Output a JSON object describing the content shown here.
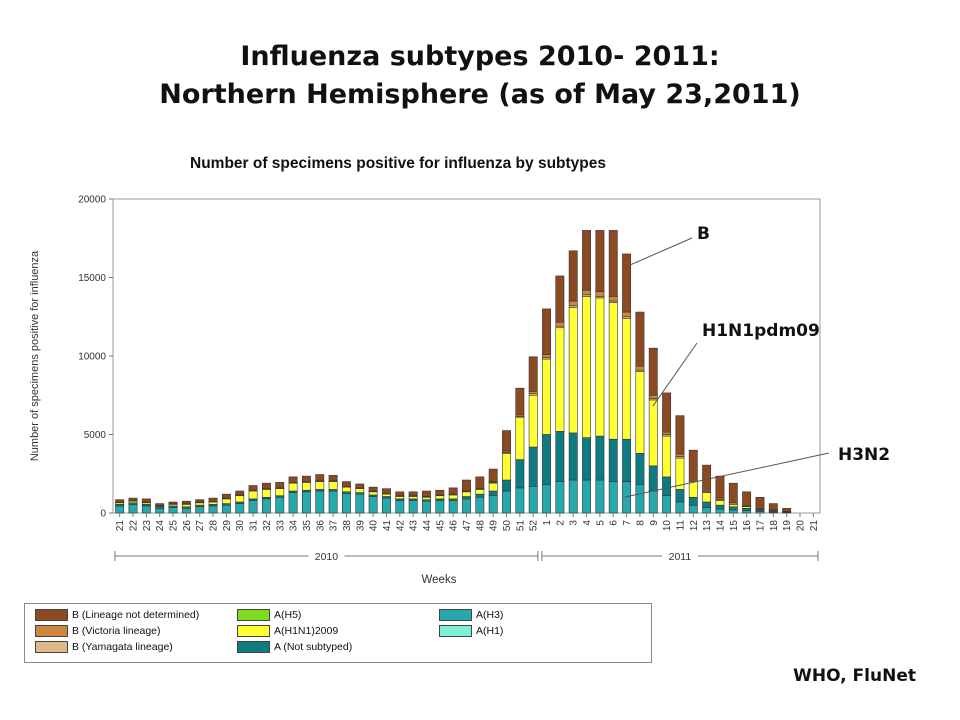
{
  "slide": {
    "title_line1": "Influenza subtypes 2010- 2011:",
    "title_line2": "Northern Hemisphere (as of May 23,2011)",
    "source": "WHO, FluNet"
  },
  "callouts": [
    {
      "key": "B",
      "text": "B"
    },
    {
      "key": "H1N1",
      "text": "H1N1pdm09"
    },
    {
      "key": "H3N2",
      "text": "H3N2"
    }
  ],
  "colors": {
    "B_undetermined": "#8b4a22",
    "B_victoria": "#cd853f",
    "B_yamagata": "#ddb98a",
    "A_H5": "#7ddc1f",
    "A_H1N1_2009": "#ffff33",
    "A_not_subtyped": "#0e7b80",
    "A_H3": "#27a8ad",
    "A_H1": "#7ff0d4"
  },
  "chart_data": {
    "type": "bar",
    "stacked": true,
    "title": "Number of specimens positive for influenza by subtypes",
    "xlabel": "Weeks",
    "ylabel": "Number of specimens positive for influenza",
    "ylim": [
      0,
      20000
    ],
    "yticks": [
      0,
      5000,
      10000,
      15000,
      20000
    ],
    "grid": false,
    "legend_position": "bottom",
    "categories": [
      "21",
      "22",
      "23",
      "24",
      "25",
      "26",
      "27",
      "28",
      "29",
      "30",
      "31",
      "32",
      "33",
      "34",
      "35",
      "36",
      "37",
      "38",
      "39",
      "40",
      "41",
      "42",
      "43",
      "44",
      "45",
      "46",
      "47",
      "48",
      "49",
      "50",
      "51",
      "52",
      "1",
      "2",
      "3",
      "4",
      "5",
      "6",
      "7",
      "8",
      "9",
      "10",
      "11",
      "12",
      "13",
      "14",
      "15",
      "16",
      "17",
      "18",
      "19",
      "20",
      "21"
    ],
    "year_groups": [
      {
        "label": "2010",
        "from": "21",
        "to": "52"
      },
      {
        "label": "2011",
        "from": "1",
        "to": "21"
      }
    ],
    "series": [
      {
        "name": "A(H3)",
        "color_key": "A_H3",
        "values": [
          450,
          550,
          450,
          300,
          350,
          300,
          400,
          450,
          500,
          600,
          800,
          900,
          1000,
          1300,
          1350,
          1400,
          1400,
          1250,
          1200,
          1050,
          950,
          800,
          800,
          750,
          800,
          800,
          900,
          1000,
          1100,
          1400,
          1600,
          1700,
          1800,
          2000,
          2100,
          2100,
          2100,
          2000,
          2000,
          1800,
          1400,
          1100,
          700,
          500,
          350,
          250,
          200,
          150,
          100,
          60,
          40,
          0,
          0
        ]
      },
      {
        "name": "A(Not subtyped)",
        "color_key": "A_not_subtyped",
        "values": [
          100,
          100,
          100,
          100,
          100,
          100,
          100,
          100,
          100,
          100,
          100,
          100,
          100,
          100,
          100,
          100,
          100,
          100,
          100,
          100,
          100,
          100,
          100,
          100,
          100,
          100,
          150,
          200,
          300,
          700,
          1800,
          2500,
          3200,
          3200,
          3000,
          2700,
          2800,
          2700,
          2700,
          2000,
          1600,
          1200,
          800,
          500,
          350,
          250,
          200,
          150,
          100,
          60,
          40,
          0,
          0
        ]
      },
      {
        "name": "A(H1N1)2009",
        "color_key": "A_H1N1_2009",
        "values": [
          100,
          100,
          100,
          50,
          100,
          150,
          150,
          150,
          300,
          400,
          500,
          500,
          450,
          500,
          500,
          500,
          500,
          300,
          250,
          200,
          150,
          150,
          150,
          150,
          200,
          250,
          300,
          300,
          500,
          1700,
          2700,
          3300,
          4800,
          6600,
          8000,
          9000,
          8800,
          8700,
          7700,
          5200,
          4200,
          2600,
          2000,
          1000,
          600,
          300,
          150,
          100,
          50,
          30,
          20,
          0,
          0
        ]
      },
      {
        "name": "A(H1)",
        "color_key": "A_H1",
        "values": [
          0,
          0,
          0,
          0,
          0,
          0,
          0,
          0,
          0,
          0,
          0,
          0,
          0,
          0,
          0,
          0,
          0,
          0,
          0,
          0,
          0,
          0,
          0,
          0,
          0,
          0,
          0,
          0,
          0,
          0,
          0,
          0,
          0,
          0,
          0,
          0,
          0,
          0,
          0,
          0,
          0,
          0,
          0,
          0,
          0,
          0,
          0,
          0,
          0,
          0,
          0,
          0,
          0
        ]
      },
      {
        "name": "A(H5)",
        "color_key": "A_H5",
        "values": [
          0,
          0,
          0,
          0,
          0,
          0,
          0,
          0,
          0,
          0,
          0,
          0,
          0,
          0,
          0,
          0,
          0,
          0,
          0,
          0,
          0,
          0,
          0,
          0,
          0,
          0,
          0,
          0,
          0,
          0,
          0,
          0,
          0,
          0,
          0,
          0,
          0,
          0,
          0,
          0,
          0,
          0,
          0,
          0,
          0,
          0,
          0,
          0,
          0,
          0,
          0,
          0,
          0
        ]
      },
      {
        "name": "B (Yamagata lineage)",
        "color_key": "B_yamagata",
        "values": [
          0,
          0,
          0,
          0,
          0,
          0,
          0,
          0,
          0,
          0,
          0,
          0,
          0,
          0,
          0,
          0,
          0,
          0,
          0,
          0,
          0,
          0,
          0,
          0,
          0,
          0,
          0,
          0,
          50,
          50,
          50,
          100,
          100,
          100,
          100,
          100,
          100,
          100,
          100,
          100,
          100,
          100,
          100,
          50,
          50,
          50,
          0,
          0,
          0,
          0,
          0,
          0,
          0
        ]
      },
      {
        "name": "B (Victoria lineage)",
        "color_key": "B_victoria",
        "values": [
          50,
          50,
          50,
          50,
          50,
          50,
          50,
          50,
          50,
          50,
          50,
          50,
          50,
          50,
          50,
          50,
          50,
          50,
          50,
          50,
          50,
          50,
          50,
          50,
          50,
          50,
          50,
          50,
          50,
          100,
          100,
          150,
          200,
          250,
          300,
          300,
          300,
          300,
          300,
          250,
          200,
          150,
          150,
          100,
          100,
          100,
          100,
          50,
          50,
          50,
          0,
          0,
          0
        ]
      },
      {
        "name": "B (Lineage not determined)",
        "color_key": "B_undetermined",
        "values": [
          150,
          150,
          200,
          100,
          100,
          150,
          150,
          200,
          250,
          250,
          300,
          350,
          350,
          350,
          350,
          400,
          350,
          300,
          250,
          250,
          300,
          250,
          250,
          350,
          300,
          400,
          700,
          750,
          800,
          1300,
          1700,
          2200,
          2900,
          2950,
          3200,
          3800,
          3900,
          4200,
          3700,
          3450,
          3000,
          2500,
          2450,
          1850,
          1600,
          1400,
          1250,
          900,
          700,
          400,
          200,
          0,
          0
        ]
      }
    ]
  },
  "legend": {
    "entries": [
      {
        "label": "B (Lineage not determined)",
        "color_key": "B_undetermined"
      },
      {
        "label": "B (Victoria lineage)",
        "color_key": "B_victoria"
      },
      {
        "label": "B (Yamagata lineage)",
        "color_key": "B_yamagata"
      },
      {
        "label": "A(H5)",
        "color_key": "A_H5"
      },
      {
        "label": "A(H1N1)2009",
        "color_key": "A_H1N1_2009"
      },
      {
        "label": "A (Not subtyped)",
        "color_key": "A_not_subtyped"
      },
      {
        "label": "A(H3)",
        "color_key": "A_H3"
      },
      {
        "label": "A(H1)",
        "color_key": "A_H1"
      }
    ]
  }
}
